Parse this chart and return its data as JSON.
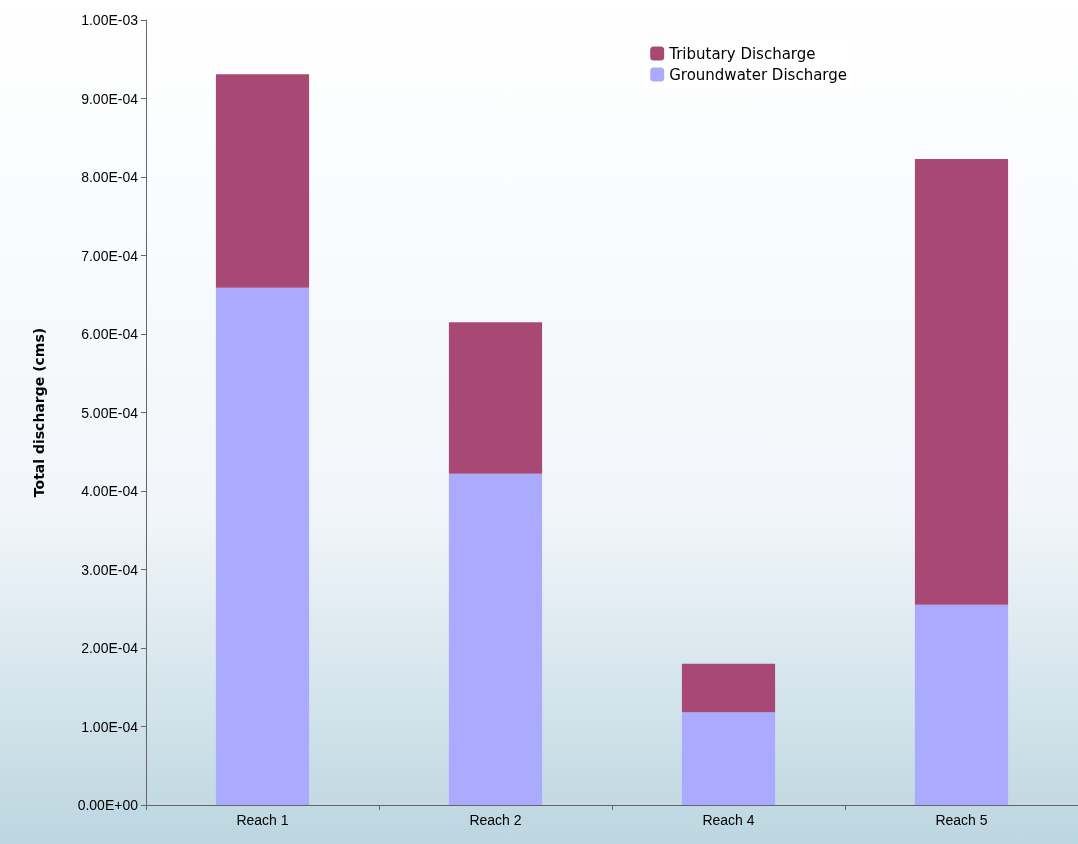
{
  "chart_data": {
    "type": "bar",
    "ylabel": "Total discharge (cms)",
    "categories": [
      "Reach 1",
      "Reach 2",
      "Reach 4",
      "Reach 5"
    ],
    "stacked": true,
    "legend": "top right",
    "grid": false,
    "series": [
      {
        "name": "Groundwater Discharge",
        "color": "#aaaaff",
        "values": [
          0.000659,
          0.000422,
          0.000118,
          0.000255
        ]
      },
      {
        "name": "Tributary Discharge",
        "color": "#a84874",
        "values": [
          0.000272,
          0.000193,
          6.2e-05,
          0.000568
        ]
      }
    ],
    "ylim": [
      0,
      0.001
    ],
    "yticks": [
      {
        "value": 0,
        "label": "0.00E+00"
      },
      {
        "value": 0.0001,
        "label": "1.00E-04"
      },
      {
        "value": 0.0002,
        "label": "2.00E-04"
      },
      {
        "value": 0.0003,
        "label": "3.00E-04"
      },
      {
        "value": 0.0004,
        "label": "4.00E-04"
      },
      {
        "value": 0.0005,
        "label": "5.00E-04"
      },
      {
        "value": 0.0006,
        "label": "6.00E-04"
      },
      {
        "value": 0.0007,
        "label": "7.00E-04"
      },
      {
        "value": 0.0008,
        "label": "8.00E-04"
      },
      {
        "value": 0.0009,
        "label": "9.00E-04"
      },
      {
        "value": 0.001,
        "label": "1.00E-03"
      }
    ]
  }
}
